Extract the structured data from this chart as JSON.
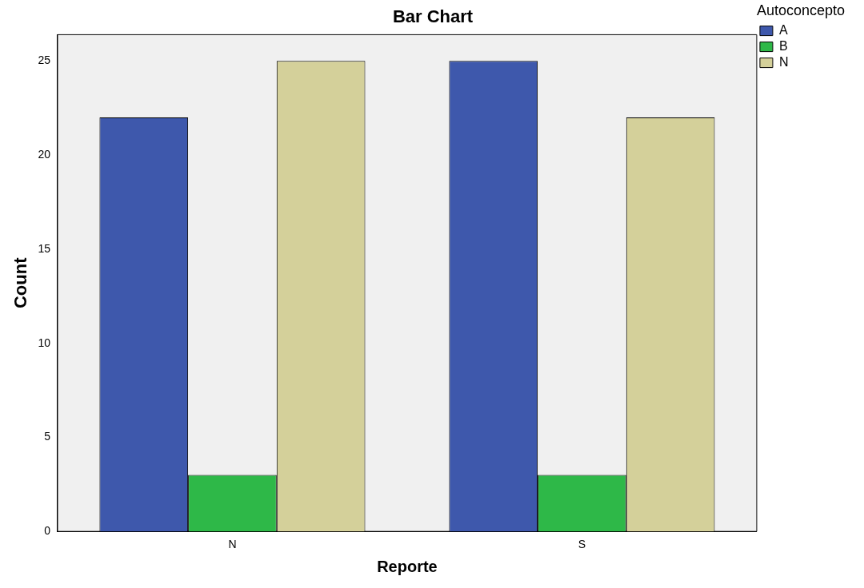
{
  "chart_data": {
    "type": "bar",
    "title": "Bar Chart",
    "xlabel": "Reporte",
    "ylabel": "Count",
    "legend_title": "Autoconcepto",
    "categories": [
      "N",
      "S"
    ],
    "series": [
      {
        "name": "A",
        "color": "#3e58ac",
        "values": [
          22,
          25
        ]
      },
      {
        "name": "B",
        "color": "#2eb848",
        "values": [
          3,
          3
        ]
      },
      {
        "name": "N",
        "color": "#d4d09a",
        "values": [
          25,
          22
        ]
      }
    ],
    "ylim": [
      0,
      26.4
    ],
    "yticks": [
      0,
      5,
      10,
      15,
      20,
      25
    ],
    "grid": false,
    "legend": "top right"
  }
}
